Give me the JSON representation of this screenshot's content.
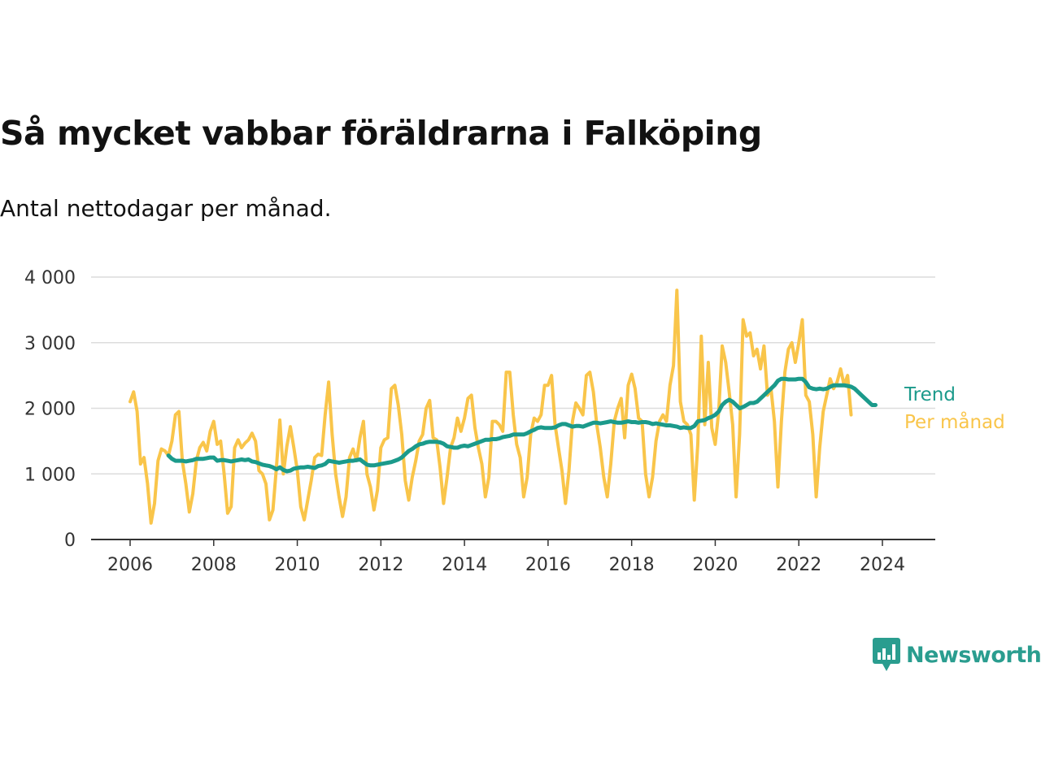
{
  "header": {
    "title": "Så mycket vabbar föräldrarna i Falköping",
    "subtitle": "Antal nettodagar per månad."
  },
  "brand": {
    "name": "Newsworthy",
    "logo_icon": "bar-chart-speech-bubble-icon",
    "color": "#2a9d8f"
  },
  "chart_data": {
    "type": "line",
    "title": "Så mycket vabbar föräldrarna i Falköping",
    "subtitle": "Antal nettodagar per månad.",
    "xlabel": "",
    "ylabel": "",
    "xlim": [
      2006,
      2024.5
    ],
    "ylim": [
      0,
      4000
    ],
    "x_ticks": [
      2006,
      2008,
      2010,
      2012,
      2014,
      2016,
      2018,
      2020,
      2022,
      2024
    ],
    "y_ticks": [
      0,
      1000,
      2000,
      3000,
      4000
    ],
    "y_tick_labels": [
      "0",
      "1 000",
      "2 000",
      "3 000",
      "4 000"
    ],
    "grid": "horizontal",
    "legend": "direct labels at line ends (right)",
    "series": [
      {
        "name": "Per månad",
        "color": "#f9c54a",
        "start": 2006.0,
        "step": 0.0833333,
        "values": [
          2100,
          2250,
          1950,
          1150,
          1250,
          850,
          250,
          550,
          1200,
          1380,
          1350,
          1280,
          1500,
          1900,
          1950,
          1200,
          850,
          420,
          700,
          1200,
          1400,
          1480,
          1350,
          1650,
          1800,
          1450,
          1500,
          1000,
          400,
          500,
          1400,
          1520,
          1400,
          1470,
          1520,
          1620,
          1500,
          1050,
          1000,
          850,
          300,
          450,
          1100,
          1820,
          1000,
          1420,
          1720,
          1400,
          1050,
          500,
          300,
          600,
          900,
          1250,
          1300,
          1280,
          1900,
          2400,
          1600,
          1000,
          650,
          350,
          650,
          1250,
          1380,
          1200,
          1550,
          1800,
          1000,
          800,
          450,
          750,
          1400,
          1520,
          1550,
          2300,
          2350,
          2050,
          1600,
          900,
          600,
          950,
          1200,
          1500,
          1600,
          2000,
          2120,
          1550,
          1520,
          1100,
          550,
          950,
          1400,
          1550,
          1850,
          1650,
          1850,
          2150,
          2200,
          1700,
          1400,
          1150,
          650,
          950,
          1800,
          1800,
          1750,
          1650,
          2550,
          2550,
          1900,
          1450,
          1250,
          650,
          950,
          1600,
          1850,
          1800,
          1900,
          2350,
          2350,
          2500,
          1750,
          1400,
          1050,
          550,
          1050,
          1800,
          2080,
          2000,
          1900,
          2500,
          2550,
          2250,
          1750,
          1400,
          950,
          650,
          1150,
          1800,
          2000,
          2150,
          1550,
          2350,
          2520,
          2300,
          1850,
          1800,
          1000,
          650,
          950,
          1500,
          1800,
          1900,
          1800,
          2350,
          2650,
          3800,
          2100,
          1800,
          1750,
          1600,
          600,
          1450,
          3100,
          1750,
          2700,
          1700,
          1450,
          1950,
          2950,
          2700,
          2250,
          1750,
          650,
          1600,
          3350,
          3100,
          3150,
          2800,
          2900,
          2600,
          2950,
          2200,
          2300,
          1800,
          800,
          1800,
          2550,
          2900,
          3000,
          2700,
          3000,
          3350,
          2200,
          2100,
          1600,
          650,
          1400,
          1950,
          2200,
          2450,
          2300,
          2400,
          2600,
          2350,
          2500,
          1900
        ]
      },
      {
        "name": "Trend",
        "color": "#1b9a8b",
        "start": 2006.917,
        "step": 0.0833333,
        "values": [
          1280,
          1230,
          1200,
          1200,
          1200,
          1190,
          1200,
          1210,
          1230,
          1230,
          1230,
          1240,
          1250,
          1250,
          1200,
          1210,
          1210,
          1200,
          1190,
          1200,
          1210,
          1220,
          1210,
          1220,
          1190,
          1180,
          1160,
          1140,
          1130,
          1120,
          1100,
          1070,
          1100,
          1060,
          1040,
          1050,
          1080,
          1090,
          1100,
          1100,
          1110,
          1100,
          1090,
          1120,
          1130,
          1150,
          1200,
          1190,
          1180,
          1170,
          1180,
          1190,
          1200,
          1200,
          1210,
          1220,
          1180,
          1140,
          1130,
          1130,
          1140,
          1150,
          1160,
          1170,
          1180,
          1200,
          1220,
          1250,
          1300,
          1350,
          1380,
          1420,
          1450,
          1460,
          1480,
          1490,
          1490,
          1490,
          1480,
          1460,
          1420,
          1410,
          1400,
          1400,
          1420,
          1430,
          1420,
          1440,
          1460,
          1480,
          1500,
          1520,
          1520,
          1530,
          1530,
          1540,
          1560,
          1570,
          1580,
          1600,
          1600,
          1600,
          1600,
          1620,
          1650,
          1670,
          1700,
          1710,
          1700,
          1700,
          1700,
          1710,
          1740,
          1760,
          1760,
          1740,
          1720,
          1730,
          1730,
          1720,
          1740,
          1760,
          1780,
          1780,
          1770,
          1780,
          1790,
          1800,
          1790,
          1780,
          1780,
          1790,
          1800,
          1790,
          1790,
          1780,
          1790,
          1790,
          1780,
          1760,
          1770,
          1760,
          1750,
          1740,
          1740,
          1730,
          1720,
          1700,
          1710,
          1700,
          1700,
          1730,
          1800,
          1810,
          1820,
          1850,
          1870,
          1900,
          1950,
          2050,
          2100,
          2130,
          2100,
          2050,
          2000,
          2020,
          2050,
          2080,
          2080,
          2100,
          2150,
          2200,
          2250,
          2300,
          2350,
          2420,
          2450,
          2450,
          2440,
          2440,
          2440,
          2450,
          2450,
          2400,
          2320,
          2300,
          2290,
          2300,
          2290,
          2300,
          2330,
          2350,
          2350,
          2350,
          2350,
          2340,
          2330,
          2300,
          2250,
          2200,
          2150,
          2100,
          2050,
          2050
        ]
      }
    ]
  }
}
